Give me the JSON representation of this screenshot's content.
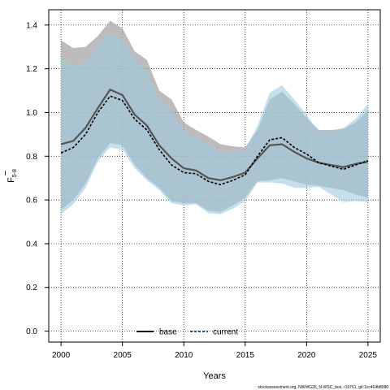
{
  "chart_data": {
    "type": "line",
    "xlabel": "Years",
    "ylabel_main": "F",
    "ylabel_sub": "5-8",
    "xlim": [
      1999,
      2026
    ],
    "ylim": [
      -0.05,
      1.47
    ],
    "xticks": [
      2000,
      2005,
      2010,
      2015,
      2020,
      2025
    ],
    "yticks": [
      0.0,
      0.2,
      0.4,
      0.6,
      0.8,
      1.0,
      1.2,
      1.4
    ],
    "xtick_labels": [
      "2000",
      "2005",
      "2010",
      "2015",
      "2020",
      "2025"
    ],
    "ytick_labels": [
      "0.0",
      "0.2",
      "0.4",
      "0.6",
      "0.8",
      "1.0",
      "1.2",
      "1.4"
    ],
    "grid": true,
    "legend_position": "bottom-left",
    "x": [
      2000,
      2001,
      2002,
      2003,
      2004,
      2005,
      2006,
      2007,
      2008,
      2009,
      2010,
      2011,
      2012,
      2013,
      2014,
      2015,
      2016,
      2017,
      2018,
      2019,
      2020,
      2021,
      2022,
      2023,
      2024,
      2025
    ],
    "series": [
      {
        "name": "base",
        "line_style": "solid",
        "line_color": "#555555",
        "band_color": "#a6a6a6",
        "values": [
          0.855,
          0.87,
          0.93,
          1.02,
          1.105,
          1.08,
          0.99,
          0.94,
          0.85,
          0.79,
          0.745,
          0.735,
          0.7,
          0.69,
          0.705,
          0.725,
          0.79,
          0.85,
          0.855,
          0.82,
          0.79,
          0.77,
          0.76,
          0.75,
          0.765,
          0.775
        ],
        "upper": [
          1.33,
          1.295,
          1.3,
          1.35,
          1.42,
          1.385,
          1.28,
          1.24,
          1.1,
          1.06,
          0.955,
          0.92,
          0.89,
          0.855,
          0.845,
          0.84,
          0.92,
          1.06,
          1.095,
          1.04,
          0.975,
          0.92,
          0.92,
          0.925,
          0.955,
          1.01
        ],
        "lower": [
          0.555,
          0.6,
          0.675,
          0.79,
          0.86,
          0.85,
          0.76,
          0.7,
          0.655,
          0.595,
          0.585,
          0.585,
          0.55,
          0.545,
          0.575,
          0.61,
          0.685,
          0.69,
          0.7,
          0.685,
          0.67,
          0.665,
          0.655,
          0.645,
          0.625,
          0.61
        ]
      },
      {
        "name": "current",
        "line_style": "dashed",
        "line_color": "#000000",
        "band_color": "#9ecae1",
        "values": [
          0.815,
          0.84,
          0.9,
          1.0,
          1.075,
          1.055,
          0.97,
          0.92,
          0.83,
          0.76,
          0.725,
          0.72,
          0.685,
          0.67,
          0.69,
          0.715,
          0.8,
          0.875,
          0.885,
          0.84,
          0.81,
          0.77,
          0.755,
          0.74,
          0.76,
          0.78
        ],
        "upper": [
          1.245,
          1.215,
          1.23,
          1.305,
          1.365,
          1.335,
          1.24,
          1.19,
          1.06,
          1.01,
          0.915,
          0.885,
          0.855,
          0.82,
          0.815,
          0.83,
          0.94,
          1.09,
          1.125,
          1.06,
          0.99,
          0.91,
          0.915,
          0.93,
          0.97,
          1.04
        ],
        "lower": [
          0.535,
          0.58,
          0.655,
          0.775,
          0.84,
          0.83,
          0.745,
          0.69,
          0.645,
          0.585,
          0.575,
          0.58,
          0.54,
          0.535,
          0.56,
          0.595,
          0.68,
          0.68,
          0.675,
          0.655,
          0.655,
          0.66,
          0.625,
          0.59,
          0.595,
          0.59
        ]
      }
    ],
    "footer": "stockassessment.org, NWWG26_N-WSC_test, r19761, git:1cc464b8080"
  }
}
